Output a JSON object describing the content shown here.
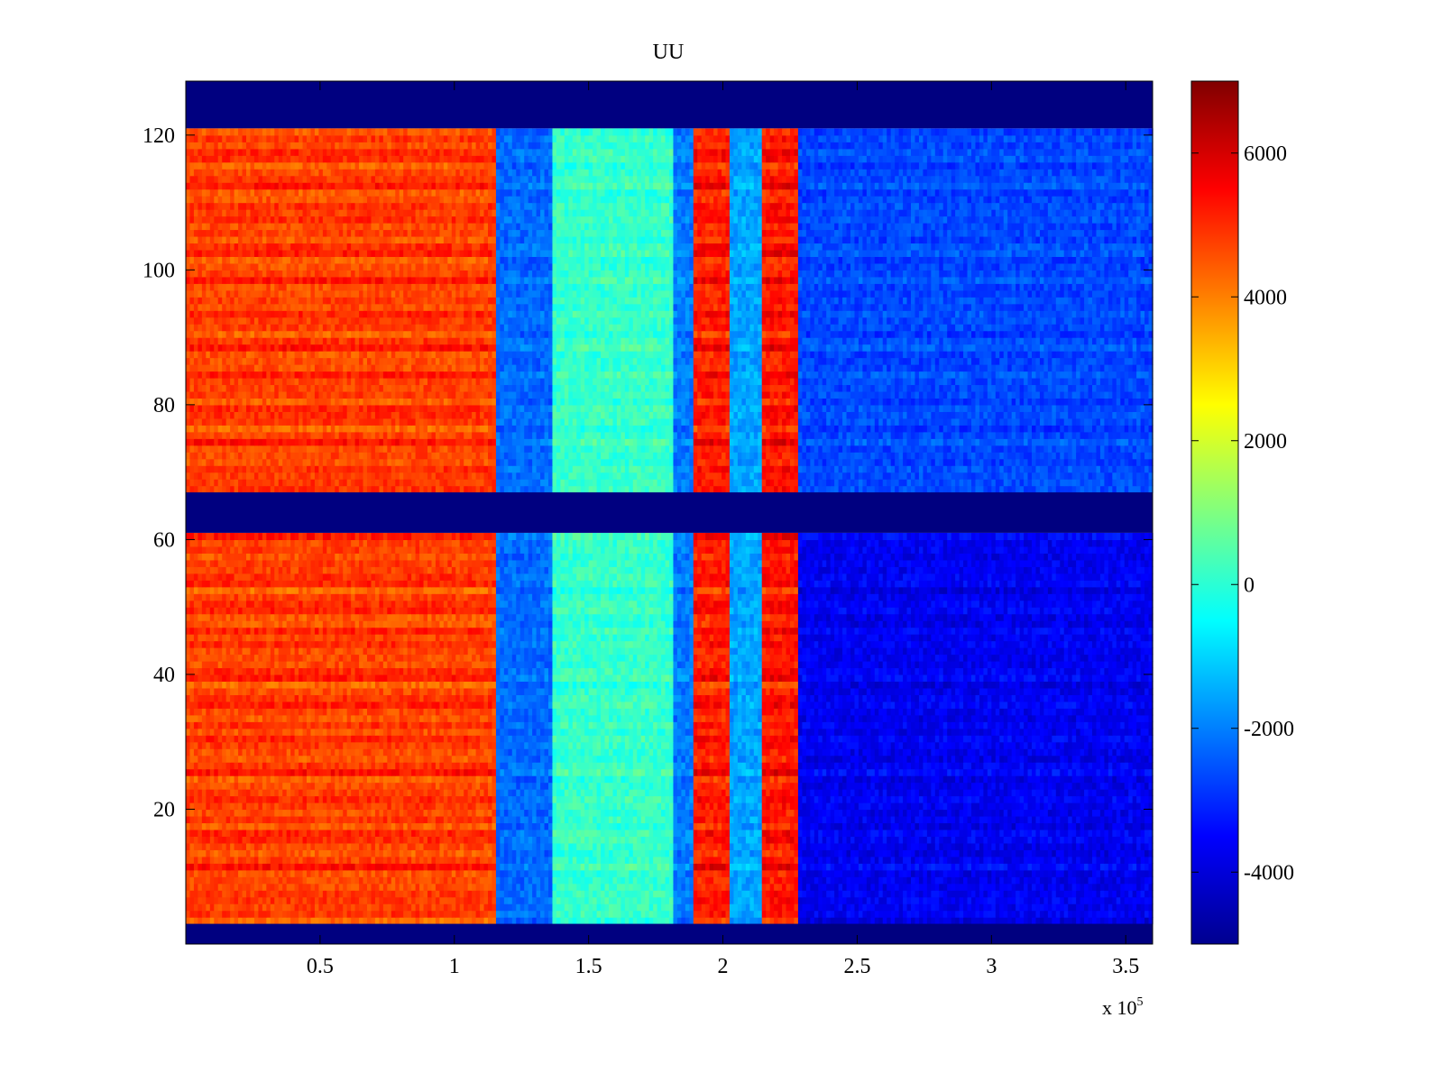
{
  "chart_data": {
    "type": "heatmap",
    "title": "UU",
    "colormap": "jet",
    "x_range": [
      0,
      360000
    ],
    "y_range": [
      0,
      128
    ],
    "x_ticks": [
      50000,
      100000,
      150000,
      200000,
      250000,
      300000,
      350000
    ],
    "x_tick_labels": [
      "0.5",
      "1",
      "1.5",
      "2",
      "2.5",
      "3",
      "3.5"
    ],
    "x_multiplier_base": "x 10",
    "x_multiplier_exponent": "5",
    "y_ticks": [
      20,
      40,
      60,
      80,
      100,
      120
    ],
    "y_tick_labels": [
      "20",
      "40",
      "60",
      "80",
      "100",
      "120"
    ],
    "color_range": [
      -5000,
      7000
    ],
    "colorbar_ticks": [
      6000,
      4000,
      2000,
      0,
      -2000,
      -4000
    ],
    "colorbar_tick_labels": [
      "6000",
      "4000",
      "2000",
      "0",
      "-2000",
      "-4000"
    ],
    "empty_row_bands": [
      [
        0,
        3
      ],
      [
        61,
        67
      ],
      [
        121,
        128
      ]
    ],
    "regions": [
      {
        "name": "left block",
        "x": [
          0,
          116000
        ],
        "level": 4800
      },
      {
        "name": "transition",
        "x": [
          116000,
          136000
        ],
        "level": -2200
      },
      {
        "name": "center band",
        "x": [
          136000,
          182000
        ],
        "level": 200
      },
      {
        "name": "pre-peak",
        "x": [
          182000,
          189000
        ],
        "level": -2000
      },
      {
        "name": "peak 1",
        "x": [
          189000,
          202000
        ],
        "level": 5200
      },
      {
        "name": "gap",
        "x": [
          202000,
          214000
        ],
        "level": -1500
      },
      {
        "name": "peak 2",
        "x": [
          214000,
          228000
        ],
        "level": 5300
      },
      {
        "name": "right block (upper rows)",
        "x": [
          228000,
          360000
        ],
        "level": -2600
      },
      {
        "name": "right block (lower rows)",
        "x": [
          228000,
          360000
        ],
        "level": -3600
      }
    ]
  }
}
